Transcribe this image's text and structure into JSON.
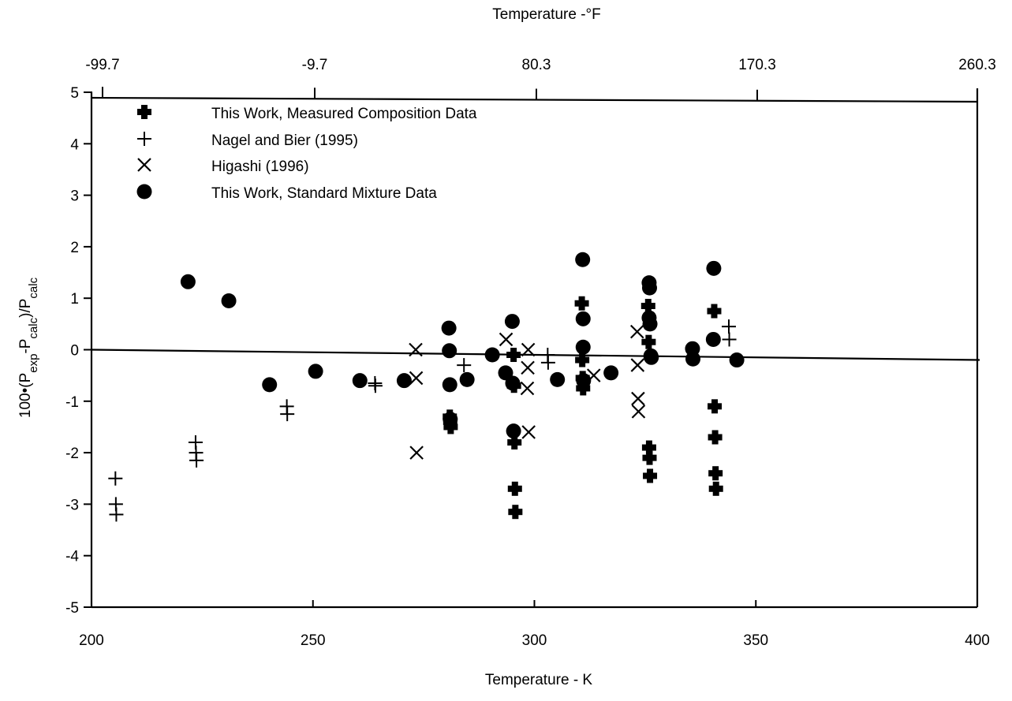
{
  "chart_data": {
    "type": "scatter",
    "title": "",
    "xlabel": "Temperature - K",
    "x2label": "Temperature -°F",
    "ylabel": "100•(Pexp-Pcalc)/Pcalc",
    "ylabel_parts": {
      "prefix": "100•(P",
      "sub1": "exp",
      "mid": "-P",
      "sub2": "calc",
      "close": ")/P",
      "sub3": "calc"
    },
    "xlim": [
      200,
      400
    ],
    "ylim": [
      -5,
      5
    ],
    "x_ticks": [
      "200",
      "250",
      "300",
      "350",
      "400"
    ],
    "x2_ticks": [
      "-99.7",
      "-9.7",
      "80.3",
      "170.3",
      "260.3"
    ],
    "y_ticks": [
      "5",
      "4",
      "3",
      "2",
      "1",
      "0",
      "-1",
      "-2",
      "-3",
      "-4",
      "-5"
    ],
    "zero_line": true,
    "grid": false,
    "legend_position": "top-left",
    "series": [
      {
        "name": "This Work, Measured Composition Data",
        "marker": "bold-plus",
        "points": [
          [
            280.9,
            -1.3
          ],
          [
            281.0,
            -1.4
          ],
          [
            281.1,
            -1.5
          ],
          [
            295.3,
            -0.1
          ],
          [
            295.4,
            -0.7
          ],
          [
            295.5,
            -1.8
          ],
          [
            295.6,
            -2.7
          ],
          [
            295.7,
            -3.15
          ],
          [
            310.7,
            0.9
          ],
          [
            310.8,
            -0.2
          ],
          [
            310.9,
            -0.55
          ],
          [
            311.0,
            -0.75
          ],
          [
            325.7,
            0.85
          ],
          [
            325.8,
            0.15
          ],
          [
            325.9,
            -1.9
          ],
          [
            326.0,
            -2.1
          ],
          [
            326.1,
            -2.45
          ],
          [
            340.6,
            0.75
          ],
          [
            340.7,
            -1.1
          ],
          [
            340.8,
            -1.7
          ],
          [
            340.9,
            -2.4
          ],
          [
            341.0,
            -2.7
          ]
        ]
      },
      {
        "name": "Nagel and Bier (1995)",
        "marker": "plus",
        "points": [
          [
            205.4,
            -2.5
          ],
          [
            205.5,
            -3.0
          ],
          [
            205.6,
            -3.2
          ],
          [
            223.5,
            -1.8
          ],
          [
            223.6,
            -2.0
          ],
          [
            223.7,
            -2.15
          ],
          [
            244.1,
            -1.1
          ],
          [
            244.2,
            -1.25
          ],
          [
            264.0,
            -0.65
          ],
          [
            264.1,
            -0.7
          ],
          [
            284.1,
            -0.3
          ],
          [
            303.0,
            -0.1
          ],
          [
            303.1,
            -0.25
          ],
          [
            343.9,
            0.45
          ],
          [
            344.0,
            0.2
          ]
        ]
      },
      {
        "name": "Higashi (1996)",
        "marker": "x",
        "points": [
          [
            273.2,
            0.0
          ],
          [
            273.3,
            -0.55
          ],
          [
            273.4,
            -2.0
          ],
          [
            293.6,
            0.2
          ],
          [
            298.6,
            0.0
          ],
          [
            298.5,
            -0.35
          ],
          [
            298.4,
            -0.75
          ],
          [
            298.7,
            -1.6
          ],
          [
            313.4,
            -0.5
          ],
          [
            323.2,
            0.35
          ],
          [
            323.3,
            -0.3
          ],
          [
            323.4,
            -0.95
          ],
          [
            323.5,
            -1.2
          ]
        ]
      },
      {
        "name": "This Work, Standard Mixture Data",
        "marker": "circle",
        "points": [
          [
            221.8,
            1.32
          ],
          [
            231.0,
            0.95
          ],
          [
            240.2,
            -0.68
          ],
          [
            250.6,
            -0.42
          ],
          [
            260.6,
            -0.6
          ],
          [
            270.6,
            -0.6
          ],
          [
            280.7,
            0.42
          ],
          [
            280.8,
            -0.02
          ],
          [
            280.9,
            -0.68
          ],
          [
            281.0,
            -1.35
          ],
          [
            284.8,
            -0.58
          ],
          [
            290.5,
            -0.1
          ],
          [
            293.5,
            -0.45
          ],
          [
            295.0,
            0.55
          ],
          [
            295.1,
            -0.65
          ],
          [
            295.3,
            -1.58
          ],
          [
            305.2,
            -0.58
          ],
          [
            310.9,
            1.75
          ],
          [
            311.0,
            0.6
          ],
          [
            311.0,
            0.05
          ],
          [
            311.1,
            -0.6
          ],
          [
            317.3,
            -0.45
          ],
          [
            325.9,
            1.3
          ],
          [
            326.0,
            1.2
          ],
          [
            325.9,
            0.62
          ],
          [
            326.1,
            0.5
          ],
          [
            326.3,
            -0.12
          ],
          [
            326.4,
            -0.15
          ],
          [
            335.7,
            0.02
          ],
          [
            335.8,
            -0.18
          ],
          [
            340.5,
            1.58
          ],
          [
            340.4,
            0.2
          ],
          [
            345.7,
            -0.2
          ]
        ]
      }
    ]
  },
  "colors": {
    "ink": "#000000",
    "background": "#ffffff"
  }
}
